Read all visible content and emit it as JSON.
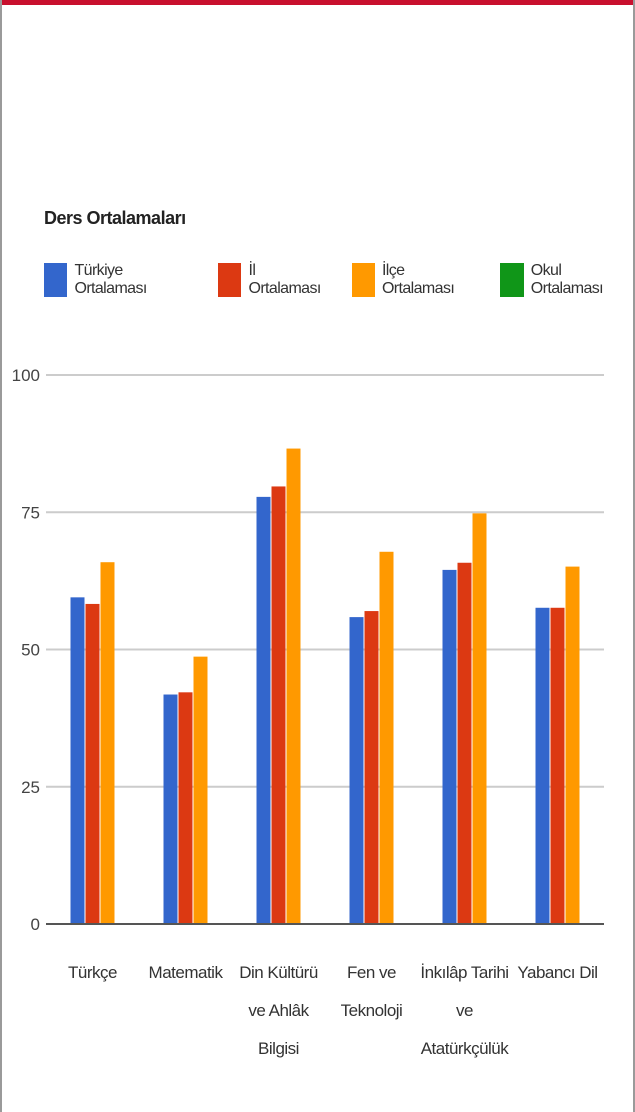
{
  "chart_data": {
    "type": "bar",
    "title": "Ders Ortalamaları",
    "categories": [
      [
        "Türkçe"
      ],
      [
        "Matematik"
      ],
      [
        "Din Kültürü",
        "ve Ahlâk",
        "Bilgisi"
      ],
      [
        "Fen ve",
        "Teknoloji"
      ],
      [
        "İnkılâp Tarihi",
        "ve",
        "Atatürkçülük"
      ],
      [
        "Yabancı Dil"
      ]
    ],
    "series": [
      {
        "name": "Türkiye Ortalaması",
        "color": "#3366cc",
        "values": [
          59.5,
          41.8,
          77.8,
          55.9,
          64.5,
          57.6
        ]
      },
      {
        "name": "İl Ortalaması",
        "color": "#dc3912",
        "values": [
          58.3,
          42.2,
          79.7,
          57.0,
          65.8,
          57.6
        ]
      },
      {
        "name": "İlçe Ortalaması",
        "color": "#ff9900",
        "values": [
          65.9,
          48.7,
          86.6,
          67.8,
          74.8,
          65.1
        ]
      },
      {
        "name": "Okul Ortalaması",
        "color": "#109618",
        "values": [
          0,
          0,
          0,
          0,
          0,
          0
        ]
      }
    ],
    "yticks": [
      "0",
      "25",
      "50",
      "75",
      "100"
    ],
    "ylim": [
      0,
      100
    ],
    "grid": true,
    "legend_position": "top"
  }
}
